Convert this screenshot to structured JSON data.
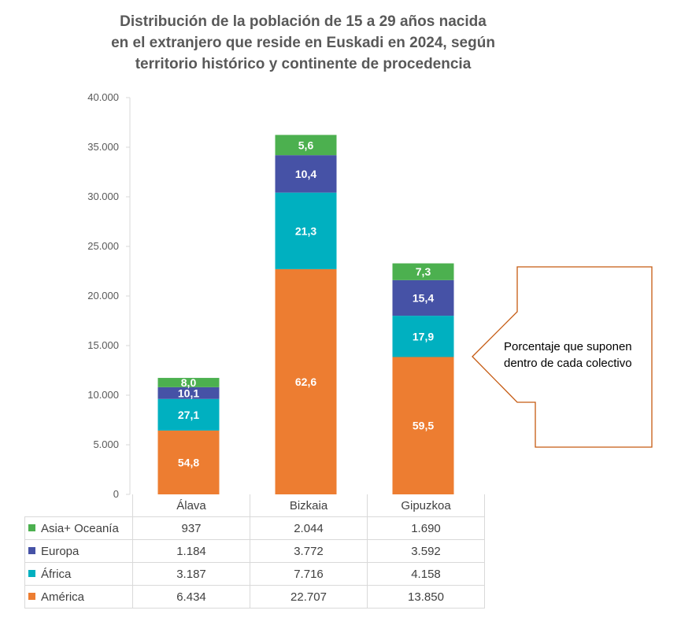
{
  "chart_data": {
    "type": "bar",
    "stacked": true,
    "title": [
      "Distribución de la población  de 15 a 29 años nacida",
      "en el extranjero que reside en Euskadi en 2024, según",
      "territorio histórico y continente de procedencia"
    ],
    "categories": [
      "Álava",
      "Bizkaia",
      "Gipuzkoa"
    ],
    "ylim": [
      0,
      40000
    ],
    "yticks": [
      "0",
      "5.000",
      "10.000",
      "15.000",
      "20.000",
      "25.000",
      "30.000",
      "35.000",
      "40.000"
    ],
    "series": [
      {
        "name": "América",
        "color": "#ED7D31",
        "values": [
          6434,
          22707,
          13850
        ],
        "display_values": [
          "6.434",
          "22.707",
          "13.850"
        ],
        "percent_labels": [
          "54,8",
          "62,6",
          "59,5"
        ]
      },
      {
        "name": "África",
        "color": "#00B0C0",
        "values": [
          3187,
          7716,
          4158
        ],
        "display_values": [
          "3.187",
          "7.716",
          "4.158"
        ],
        "percent_labels": [
          "27,1",
          "21,3",
          "17,9"
        ]
      },
      {
        "name": "Europa",
        "color": "#4652A6",
        "values": [
          1184,
          3772,
          3592
        ],
        "display_values": [
          "1.184",
          "3.772",
          "3.592"
        ],
        "percent_labels": [
          "10,1",
          "10,4",
          "15,4"
        ]
      },
      {
        "name": "Asia+ Oceanía",
        "color": "#4CB04F",
        "values": [
          937,
          2044,
          1690
        ],
        "display_values": [
          "937",
          "2.044",
          "1.690"
        ],
        "percent_labels": [
          "8,0",
          "5,6",
          "7,3"
        ]
      }
    ],
    "table_row_order": [
      "Asia+ Oceanía",
      "Europa",
      "África",
      "América"
    ],
    "annotation": [
      "Porcentaje que suponen",
      "dentro de cada colectivo"
    ],
    "annotation_color": "#C55A11",
    "grid": false,
    "legend": "data-table"
  }
}
